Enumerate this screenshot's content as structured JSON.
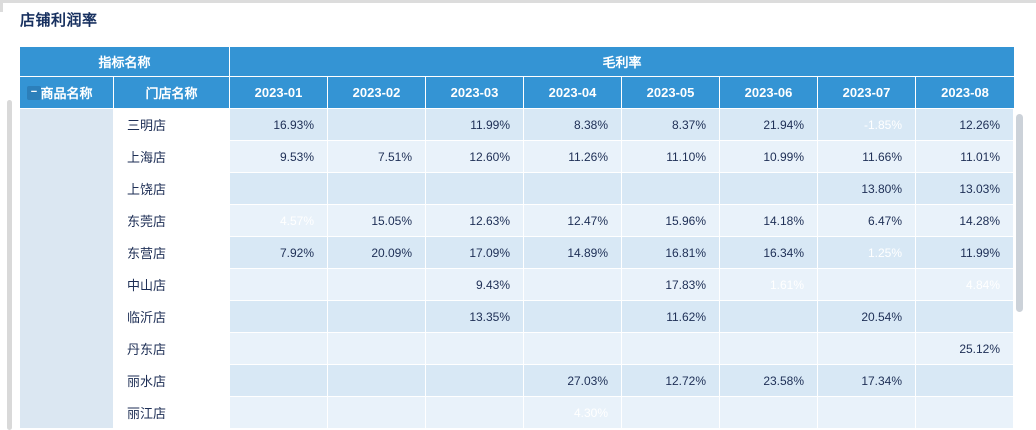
{
  "title": "店铺利润率",
  "ui": {
    "collapse_icon": "−"
  },
  "colors": {
    "header_blue": "#3494d4",
    "row_odd": "#d8e8f5",
    "row_even": "#e9f2fa",
    "highlight_pink": "#fce6de",
    "highlight_orange": "#f7ab42",
    "highlight_red": "#d8695a"
  },
  "chart_data": {
    "type": "table",
    "title": "店铺利润率",
    "group_headers": {
      "indicator": "指标名称",
      "metric": "毛利率"
    },
    "column_headers": {
      "product": "商品名称",
      "store": "门店名称"
    },
    "months": [
      "2023-01",
      "2023-02",
      "2023-03",
      "2023-04",
      "2023-05",
      "2023-06",
      "2023-07",
      "2023-08"
    ],
    "rows": [
      {
        "store": "三明店",
        "values": [
          "16.93%",
          "",
          "11.99%",
          "8.38%",
          "8.37%",
          "21.94%",
          "-1.85%",
          "12.26%"
        ],
        "styles": [
          "",
          "",
          "",
          "pink",
          "pink",
          "",
          "red",
          ""
        ]
      },
      {
        "store": "上海店",
        "values": [
          "9.53%",
          "7.51%",
          "12.60%",
          "11.26%",
          "11.10%",
          "10.99%",
          "11.66%",
          "11.01%"
        ],
        "styles": [
          "pink",
          "",
          "",
          "",
          "",
          "",
          "",
          ""
        ]
      },
      {
        "store": "上饶店",
        "values": [
          "",
          "",
          "",
          "",
          "",
          "",
          "13.80%",
          "13.03%"
        ],
        "styles": [
          "",
          "",
          "",
          "",
          "",
          "",
          "",
          ""
        ]
      },
      {
        "store": "东莞店",
        "values": [
          "4.57%",
          "15.05%",
          "12.63%",
          "12.47%",
          "15.96%",
          "14.18%",
          "6.47%",
          "14.28%"
        ],
        "styles": [
          "orange",
          "",
          "",
          "",
          "",
          "",
          "",
          ""
        ]
      },
      {
        "store": "东营店",
        "values": [
          "7.92%",
          "20.09%",
          "17.09%",
          "14.89%",
          "16.81%",
          "16.34%",
          "1.25%",
          "11.99%"
        ],
        "styles": [
          "",
          "",
          "",
          "",
          "",
          "",
          "orange",
          ""
        ]
      },
      {
        "store": "中山店",
        "values": [
          "",
          "",
          "9.43%",
          "",
          "17.83%",
          "1.61%",
          "",
          "4.84%"
        ],
        "styles": [
          "",
          "",
          "pink",
          "",
          "",
          "orange",
          "",
          "orange"
        ]
      },
      {
        "store": "临沂店",
        "values": [
          "",
          "",
          "13.35%",
          "",
          "11.62%",
          "",
          "20.54%",
          ""
        ],
        "styles": [
          "",
          "",
          "",
          "",
          "",
          "",
          "",
          ""
        ]
      },
      {
        "store": "丹东店",
        "values": [
          "",
          "",
          "",
          "",
          "",
          "",
          "",
          "25.12%"
        ],
        "styles": [
          "",
          "",
          "",
          "",
          "",
          "",
          "",
          ""
        ]
      },
      {
        "store": "丽水店",
        "values": [
          "",
          "",
          "",
          "27.03%",
          "12.72%",
          "23.58%",
          "17.34%",
          ""
        ],
        "styles": [
          "",
          "",
          "",
          "",
          "",
          "",
          "",
          ""
        ]
      },
      {
        "store": "丽江店",
        "values": [
          "",
          "",
          "",
          "4.30%",
          "",
          "",
          "",
          ""
        ],
        "styles": [
          "",
          "",
          "",
          "orange",
          "",
          "",
          "",
          ""
        ]
      }
    ]
  }
}
